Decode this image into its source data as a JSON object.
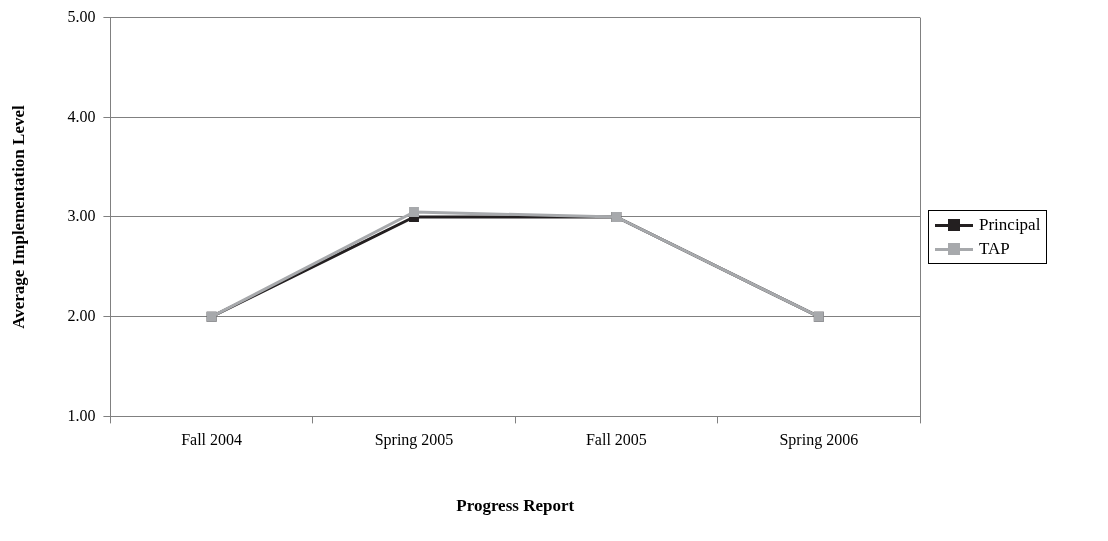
{
  "chart_data": {
    "type": "line",
    "xlabel": "Progress Report",
    "ylabel": "Average Implementation Level",
    "categories": [
      "Fall 2004",
      "Spring 2005",
      "Fall 2005",
      "Spring 2006"
    ],
    "series": [
      {
        "name": "Principal",
        "color": "#231f20",
        "values": [
          2.0,
          3.0,
          3.0,
          2.0
        ]
      },
      {
        "name": "TAP",
        "color": "#a7a9ac",
        "values": [
          2.0,
          3.05,
          3.0,
          2.0
        ]
      }
    ],
    "ylim": [
      1,
      5
    ],
    "yticks": [
      {
        "value": 1,
        "label": "1.00"
      },
      {
        "value": 2,
        "label": "2.00"
      },
      {
        "value": 3,
        "label": "3.00"
      },
      {
        "value": 4,
        "label": "4.00"
      },
      {
        "value": 5,
        "label": "5.00"
      }
    ],
    "grid": "y",
    "legend": "right",
    "marker": "square",
    "line_style": "solid"
  }
}
